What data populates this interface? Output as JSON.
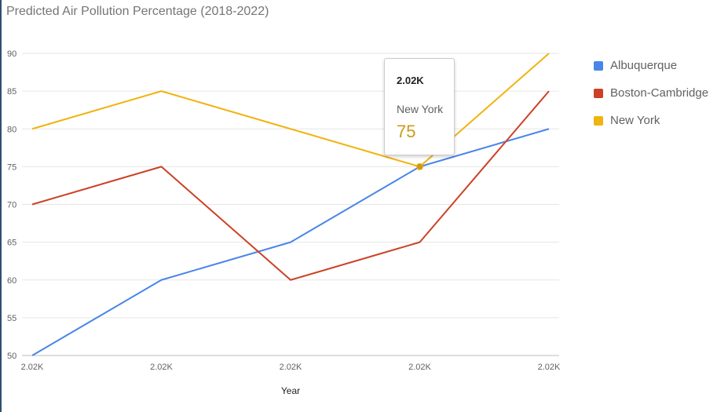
{
  "title": "Predicted Air Pollution Percentage (2018-2022)",
  "chart_data": {
    "type": "line",
    "x": [
      2018,
      2019,
      2020,
      2021,
      2022
    ],
    "x_tick_labels": [
      "2.02K",
      "2.02K",
      "2.02K",
      "2.02K",
      "2.02K"
    ],
    "xlabel": "Year",
    "ylabel": "",
    "ylim": [
      50,
      90
    ],
    "y_ticks": [
      50,
      55,
      60,
      65,
      70,
      75,
      80,
      85,
      90
    ],
    "grid": true,
    "legend_position": "right",
    "series": [
      {
        "name": "Albuquerque",
        "color": "#4a86e8",
        "values": [
          50,
          60,
          65,
          75,
          80
        ]
      },
      {
        "name": "Boston-Cambridge",
        "color": "#cc4125",
        "values": [
          70,
          75,
          60,
          65,
          85
        ]
      },
      {
        "name": "New York",
        "color": "#f1b310",
        "values": [
          80,
          85,
          80,
          75,
          90
        ]
      }
    ]
  },
  "tooltip": {
    "header": "2.02K",
    "series_name": "New York",
    "value": "75",
    "series_index": 2,
    "point_index": 3
  }
}
